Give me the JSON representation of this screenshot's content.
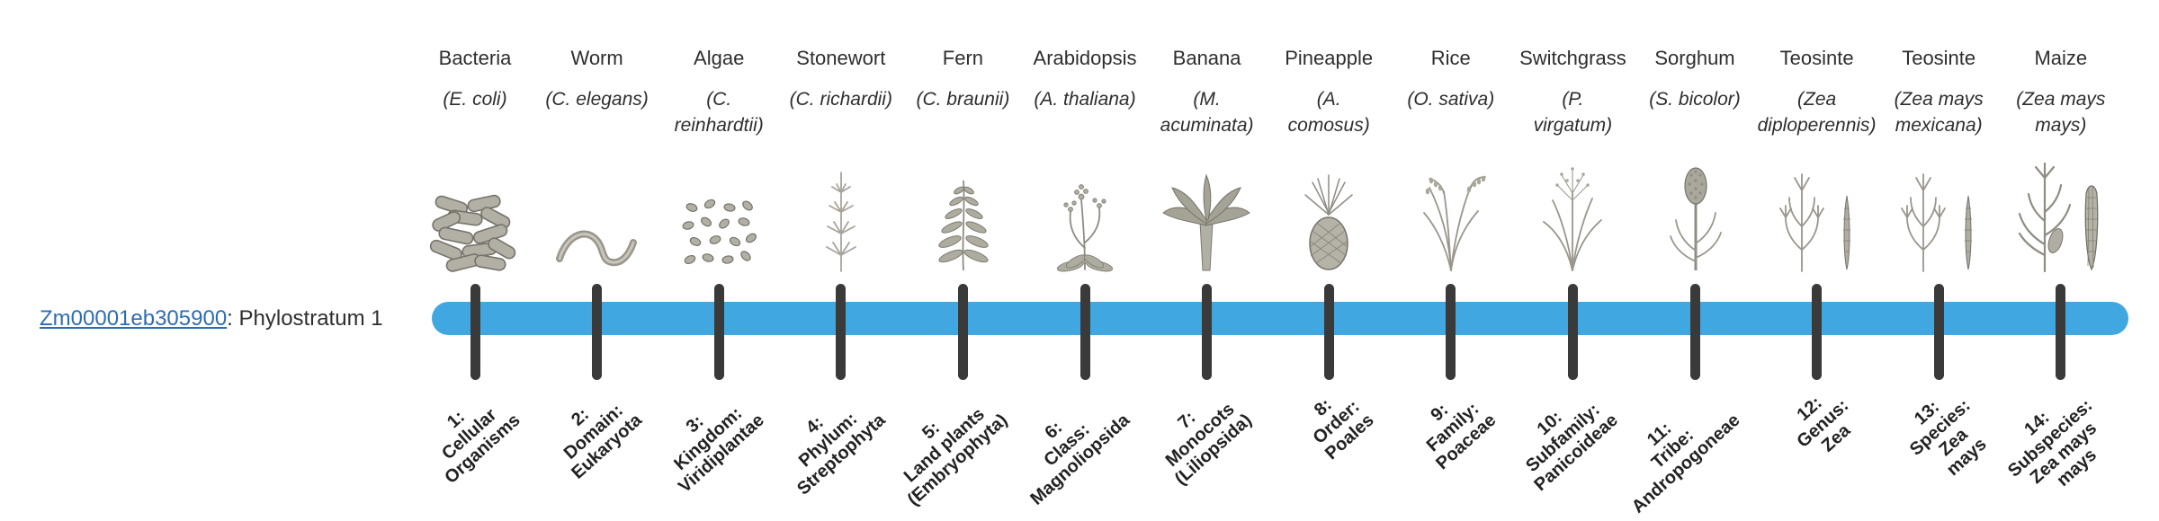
{
  "page": {
    "background": "#ffffff"
  },
  "gene_label": {
    "link_text": "Zm00001eb305900",
    "rest_text": ": Phylostratum 1",
    "link_color": "#2d6db5"
  },
  "timeline": {
    "bar_color": "#41a7e0",
    "tick_color": "#3a3a3a"
  },
  "strata": [
    {
      "index": 1,
      "common_name": "Bacteria",
      "scientific_name": "(E. coli)",
      "icon": "bacteria-icon",
      "label": "1:\nCellular\nOrganisms"
    },
    {
      "index": 2,
      "common_name": "Worm",
      "scientific_name": "(C. elegans)",
      "icon": "worm-icon",
      "label": "2:\nDomain:\nEukaryota"
    },
    {
      "index": 3,
      "common_name": "Algae",
      "scientific_name": "(C.\nreinhardtii)",
      "icon": "algae-icon",
      "label": "3:\nKingdom:\nViridiplantae"
    },
    {
      "index": 4,
      "common_name": "Stonewort",
      "scientific_name": "(C. richardii)",
      "icon": "stonewort-icon",
      "label": "4:\nPhylum:\nStreptophyta"
    },
    {
      "index": 5,
      "common_name": "Fern",
      "scientific_name": "(C. braunii)",
      "icon": "fern-icon",
      "label": "5:\nLand plants\n(Embryophyta)"
    },
    {
      "index": 6,
      "common_name": "Arabidopsis",
      "scientific_name": "(A. thaliana)",
      "icon": "arabidopsis-icon",
      "label": "6:\nClass:\nMagnoliopsida"
    },
    {
      "index": 7,
      "common_name": "Banana",
      "scientific_name": "(M.\nacuminata)",
      "icon": "banana-icon",
      "label": "7:\nMonocots\n(Liliopsida)"
    },
    {
      "index": 8,
      "common_name": "Pineapple",
      "scientific_name": "(A.\ncomosus)",
      "icon": "pineapple-icon",
      "label": "8:\nOrder:\nPoales"
    },
    {
      "index": 9,
      "common_name": "Rice",
      "scientific_name": "(O. sativa)",
      "icon": "rice-icon",
      "label": "9:\nFamily:\nPoaceae"
    },
    {
      "index": 10,
      "common_name": "Switchgrass",
      "scientific_name": "(P.\nvirgatum)",
      "icon": "switchgrass-icon",
      "label": "10:\nSubfamily:\nPanicoideae"
    },
    {
      "index": 11,
      "common_name": "Sorghum",
      "scientific_name": "(S. bicolor)",
      "icon": "sorghum-icon",
      "label": "11:\nTribe:\nAndropogoneae"
    },
    {
      "index": 12,
      "common_name": "Teosinte",
      "scientific_name": "(Zea\ndiploperennis)",
      "icon": "teosinte-icon",
      "label": "12:\nGenus:\nZea"
    },
    {
      "index": 13,
      "common_name": "Teosinte",
      "scientific_name": "(Zea mays\nmexicana)",
      "icon": "teosinte-icon",
      "label": "13:\nSpecies:\nZea\nmays"
    },
    {
      "index": 14,
      "common_name": "Maize",
      "scientific_name": "(Zea mays\nmays)",
      "icon": "maize-icon",
      "label": "14:\nSubspecies:\nZea mays\nmays"
    }
  ]
}
